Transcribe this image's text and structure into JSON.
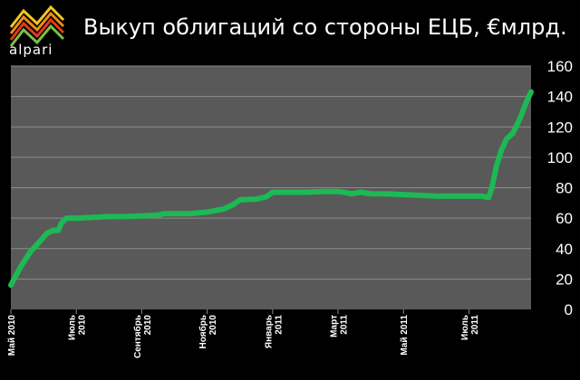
{
  "brand": {
    "logo_text": "alpari"
  },
  "colors": {
    "background": "#000000",
    "plot_background": "#595959",
    "gridline": "#8c8c8c",
    "line": "#1db954",
    "text": "#ffffff"
  },
  "chart_data": {
    "type": "line",
    "title": "Выкуп облигаций со стороны ЕЦБ, €млрд.",
    "xlabel": "",
    "ylabel": "",
    "ylim": [
      0,
      160
    ],
    "y_ticks": [
      0,
      20,
      40,
      60,
      80,
      100,
      120,
      140,
      160
    ],
    "x_ticks": [
      {
        "x": 0,
        "lines": [
          "Май 2010"
        ]
      },
      {
        "x": 2,
        "lines": [
          "Июль",
          "2010"
        ]
      },
      {
        "x": 4,
        "lines": [
          "Сентябрь",
          "2010"
        ]
      },
      {
        "x": 6,
        "lines": [
          "Ноябрь",
          "2010"
        ]
      },
      {
        "x": 8,
        "lines": [
          "Январь",
          "2011"
        ]
      },
      {
        "x": 10,
        "lines": [
          "Март",
          "2011"
        ]
      },
      {
        "x": 12,
        "lines": [
          "Май 2011"
        ]
      },
      {
        "x": 14,
        "lines": [
          "Июль",
          "2011"
        ]
      }
    ],
    "xlim": [
      0,
      15.9
    ],
    "grid": true,
    "legend": "none",
    "series": [
      {
        "values": [
          [
            0,
            16
          ],
          [
            0.3,
            28
          ],
          [
            0.6,
            38
          ],
          [
            0.9,
            45
          ],
          [
            1.1,
            50
          ],
          [
            1.3,
            52
          ],
          [
            1.45,
            52
          ],
          [
            1.55,
            57
          ],
          [
            1.7,
            60
          ],
          [
            2,
            60
          ],
          [
            2.5,
            60.5
          ],
          [
            3,
            61
          ],
          [
            3.5,
            61
          ],
          [
            4,
            61.5
          ],
          [
            4.5,
            62
          ],
          [
            4.7,
            63
          ],
          [
            5,
            63
          ],
          [
            5.5,
            63
          ],
          [
            6,
            64
          ],
          [
            6.5,
            66
          ],
          [
            6.8,
            69
          ],
          [
            7,
            72
          ],
          [
            7.5,
            72.5
          ],
          [
            7.8,
            74
          ],
          [
            8,
            77
          ],
          [
            8.5,
            77
          ],
          [
            9,
            77
          ],
          [
            9.5,
            77.5
          ],
          [
            10,
            77.5
          ],
          [
            10.2,
            77
          ],
          [
            10.4,
            76
          ],
          [
            10.7,
            77
          ],
          [
            11,
            76
          ],
          [
            11.5,
            76
          ],
          [
            12,
            75.5
          ],
          [
            12.5,
            75
          ],
          [
            13,
            74.5
          ],
          [
            13.5,
            74.5
          ],
          [
            14,
            74.5
          ],
          [
            14.4,
            74.5
          ],
          [
            14.6,
            73.5
          ],
          [
            14.7,
            80
          ],
          [
            14.85,
            95
          ],
          [
            15,
            105
          ],
          [
            15.15,
            112
          ],
          [
            15.35,
            116
          ],
          [
            15.55,
            125
          ],
          [
            15.75,
            136
          ],
          [
            15.9,
            143
          ]
        ]
      }
    ]
  }
}
